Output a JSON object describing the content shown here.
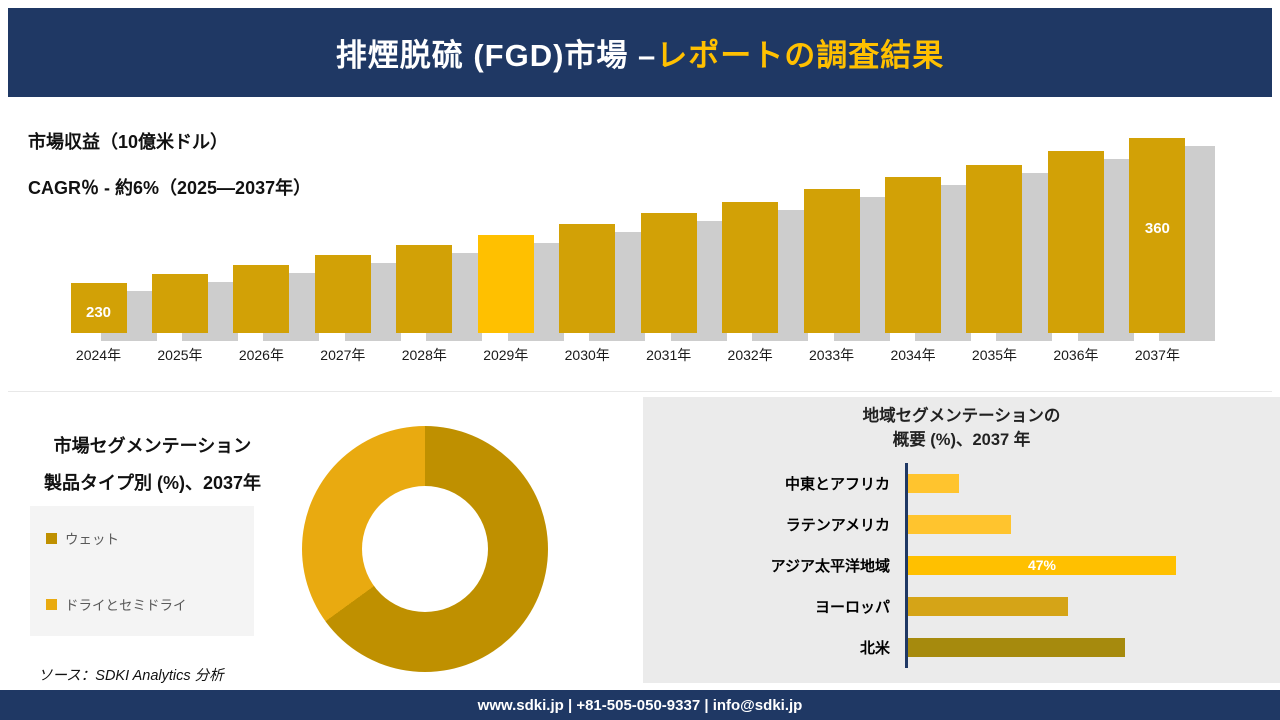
{
  "header": {
    "title_main": "排煙脱硫 (FGD)市場 –",
    "title_accent": "レポートの調査結果"
  },
  "chart_data": [
    {
      "type": "bar",
      "title": "市場収益（10億米ドル）",
      "subtitle": "CAGR％ - 約6%（2025―2037年）",
      "categories": [
        "2024年",
        "2025年",
        "2026年",
        "2027年",
        "2028年",
        "2029年",
        "2030年",
        "2031年",
        "2032年",
        "2033年",
        "2034年",
        "2035年",
        "2036年",
        "2037年"
      ],
      "values": [
        230,
        238,
        246,
        255,
        264,
        273,
        283,
        293,
        303,
        314,
        325,
        336,
        348,
        360
      ],
      "data_labels": [
        "230",
        "",
        "",
        "",
        "",
        "",
        "",
        "",
        "",
        "",
        "",
        "",
        "",
        "360"
      ],
      "highlight_category": "2029年",
      "colors": {
        "bar": "#D2A106",
        "highlight": "#FFC000",
        "shadow": "#CDCDCD",
        "data_label": "#FFFFFF"
      },
      "y_axis_visible": false,
      "grid": false,
      "legend": false
    },
    {
      "type": "pie",
      "donut": true,
      "title_lines": [
        "市場セグメンテーション",
        "製品タイプ別 (%)、2037年"
      ],
      "labels": [
        "ウェット",
        "ドライとセミドライ"
      ],
      "values": [
        65,
        35
      ],
      "colors": [
        "#BF9000",
        "#E9AA10"
      ],
      "legend_position": "left"
    },
    {
      "type": "bar",
      "orientation": "horizontal",
      "title_lines": [
        "地域セグメンテーションの",
        "概要 (%)、2037 年"
      ],
      "categories": [
        "中東とアフリカ",
        "ラテンアメリカ",
        "アジア太平洋地域",
        "ヨーロッパ",
        "北米"
      ],
      "values": [
        9,
        18,
        47,
        28,
        38
      ],
      "data_labels": [
        "",
        "",
        "47%",
        "",
        ""
      ],
      "colors": [
        "#FFC42E",
        "#FFC42E",
        "#FFC000",
        "#D5A417",
        "#A68A0D"
      ],
      "axis_color": "#1F3864"
    }
  ],
  "source_note": "ソース：SDKI Analytics 分析",
  "footer": {
    "text": "www.sdki.jp | +81-505-050-9337 | info@sdki.jp"
  },
  "colors": {
    "navy": "#1F3864",
    "accent_yellow": "#FFC000",
    "panel_gray": "#EBEBEB",
    "legend_box_gray": "#F4F4F4"
  }
}
